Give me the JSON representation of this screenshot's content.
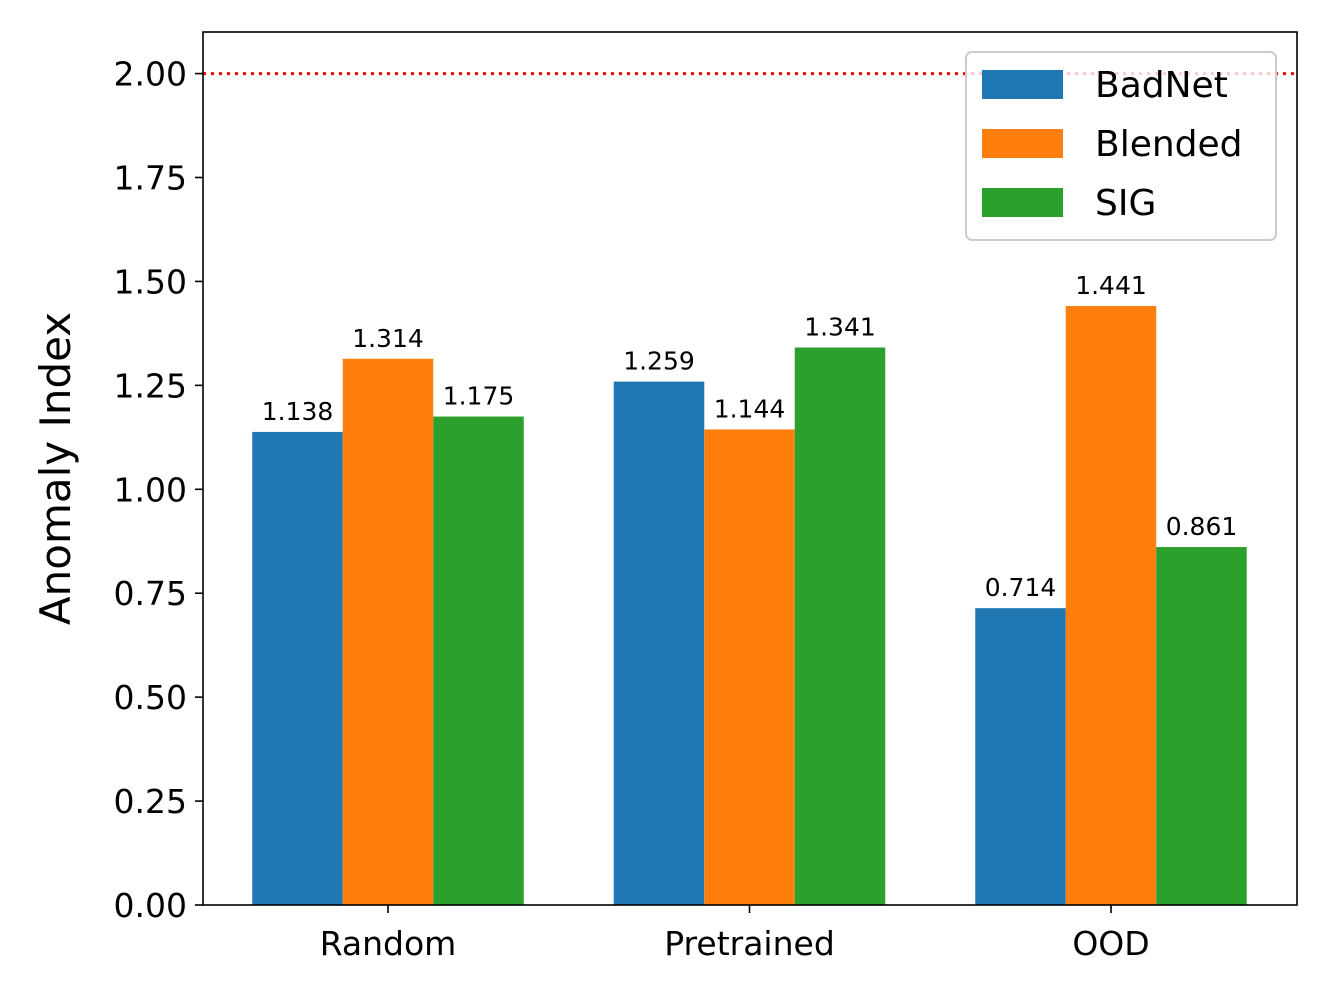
{
  "chart_data": {
    "type": "bar",
    "title": "",
    "xlabel": "",
    "ylabel": "Anomaly Index",
    "ylim": [
      0,
      2.1
    ],
    "yticks": [
      "0.00",
      "0.25",
      "0.50",
      "0.75",
      "1.00",
      "1.25",
      "1.50",
      "1.75",
      "2.00"
    ],
    "categories": [
      "Random",
      "Pretrained",
      "OOD"
    ],
    "series": [
      {
        "name": "BadNet",
        "color": "#1f77b4",
        "values": [
          1.138,
          1.259,
          0.714
        ],
        "labels": [
          "1.138",
          "1.259",
          "0.714"
        ]
      },
      {
        "name": "Blended",
        "color": "#ff7f0e",
        "values": [
          1.314,
          1.144,
          1.441
        ],
        "labels": [
          "1.314",
          "1.144",
          "1.441"
        ]
      },
      {
        "name": "SIG",
        "color": "#2ca02c",
        "values": [
          1.175,
          1.341,
          0.861
        ],
        "labels": [
          "1.175",
          "1.341",
          "0.861"
        ]
      }
    ],
    "threshold": {
      "value": 2.0,
      "color": "#ff0000",
      "style": "dotted"
    },
    "legend": {
      "position": "top-right",
      "entries": [
        "BadNet",
        "Blended",
        "SIG"
      ]
    },
    "grid": false
  }
}
